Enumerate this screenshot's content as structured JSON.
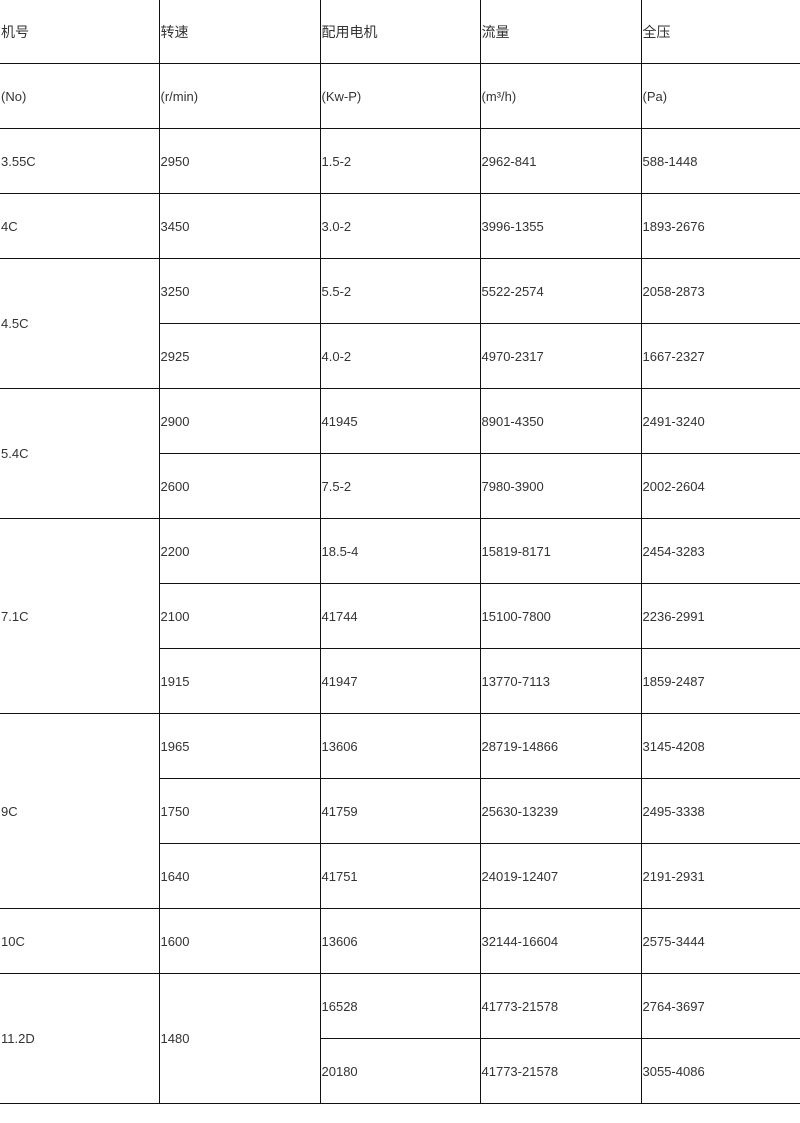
{
  "header": {
    "titles": [
      "机号",
      "转速",
      "配用电机",
      "流量",
      "全压"
    ],
    "units": [
      "(No)",
      "(r/min)",
      "(Kw-P)",
      "(m³/h)",
      "(Pa)"
    ]
  },
  "groups": [
    {
      "model": "3.55C",
      "speeds": [
        {
          "speed": "2950",
          "rows": [
            [
              "1.5-2",
              "2962-841",
              "588-1448"
            ]
          ]
        }
      ]
    },
    {
      "model": "4C",
      "speeds": [
        {
          "speed": "3450",
          "rows": [
            [
              "3.0-2",
              "3996-1355",
              "1893-2676"
            ]
          ]
        }
      ]
    },
    {
      "model": "4.5C",
      "speeds": [
        {
          "speed": "3250",
          "rows": [
            [
              "5.5-2",
              "5522-2574",
              "2058-2873"
            ]
          ]
        },
        {
          "speed": "2925",
          "rows": [
            [
              "4.0-2",
              "4970-2317",
              "1667-2327"
            ]
          ]
        }
      ]
    },
    {
      "model": "5.4C",
      "speeds": [
        {
          "speed": "2900",
          "rows": [
            [
              "41945",
              "8901-4350",
              "2491-3240"
            ]
          ]
        },
        {
          "speed": "2600",
          "rows": [
            [
              "7.5-2",
              "7980-3900",
              "2002-2604"
            ]
          ]
        }
      ]
    },
    {
      "model": "7.1C",
      "speeds": [
        {
          "speed": "2200",
          "rows": [
            [
              "18.5-4",
              "15819-8171",
              "2454-3283"
            ]
          ]
        },
        {
          "speed": "2100",
          "rows": [
            [
              "41744",
              "15100-7800",
              "2236-2991"
            ]
          ]
        },
        {
          "speed": "1915",
          "rows": [
            [
              "41947",
              "13770-7113",
              "1859-2487"
            ]
          ]
        }
      ]
    },
    {
      "model": "9C",
      "speeds": [
        {
          "speed": "1965",
          "rows": [
            [
              "13606",
              "28719-14866",
              "3145-4208"
            ]
          ]
        },
        {
          "speed": "1750",
          "rows": [
            [
              "41759",
              "25630-13239",
              "2495-3338"
            ]
          ]
        },
        {
          "speed": "1640",
          "rows": [
            [
              "41751",
              "24019-12407",
              "2191-2931"
            ]
          ]
        }
      ]
    },
    {
      "model": "10C",
      "speeds": [
        {
          "speed": "1600",
          "rows": [
            [
              "13606",
              "32144-16604",
              "2575-3444"
            ]
          ]
        }
      ]
    },
    {
      "model": "11.2D",
      "speeds": [
        {
          "speed": "1480",
          "rows": [
            [
              "16528",
              "41773-21578",
              "2764-3697"
            ],
            [
              "20180",
              "41773-21578",
              "3055-4086"
            ]
          ]
        }
      ]
    }
  ]
}
